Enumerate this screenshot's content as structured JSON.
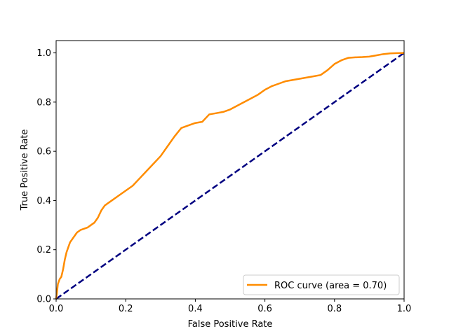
{
  "chart_data": {
    "type": "line",
    "title": "",
    "xlabel": "False Positive Rate",
    "ylabel": "True Positive Rate",
    "xlim": [
      0.0,
      1.0
    ],
    "ylim": [
      0.0,
      1.05
    ],
    "xticks": [
      0.0,
      0.2,
      0.4,
      0.6,
      0.8,
      1.0
    ],
    "yticks": [
      0.0,
      0.2,
      0.4,
      0.6,
      0.8,
      1.0
    ],
    "xtick_labels": [
      "0.0",
      "0.2",
      "0.4",
      "0.6",
      "0.8",
      "1.0"
    ],
    "ytick_labels": [
      "0.0",
      "0.2",
      "0.4",
      "0.6",
      "0.8",
      "1.0"
    ],
    "grid": false,
    "legend": {
      "position": "lower right",
      "entries": [
        "ROC curve (area = 0.70)"
      ]
    },
    "series": [
      {
        "name": "ROC curve (area = 0.70)",
        "color": "#ff8c00",
        "style": "solid",
        "x": [
          0.0,
          0.002,
          0.005,
          0.01,
          0.015,
          0.02,
          0.025,
          0.03,
          0.035,
          0.04,
          0.05,
          0.06,
          0.07,
          0.08,
          0.09,
          0.1,
          0.11,
          0.12,
          0.13,
          0.14,
          0.15,
          0.16,
          0.18,
          0.2,
          0.22,
          0.24,
          0.26,
          0.28,
          0.3,
          0.32,
          0.34,
          0.36,
          0.38,
          0.4,
          0.42,
          0.44,
          0.46,
          0.48,
          0.5,
          0.52,
          0.54,
          0.56,
          0.58,
          0.6,
          0.62,
          0.64,
          0.66,
          0.68,
          0.7,
          0.72,
          0.74,
          0.76,
          0.78,
          0.8,
          0.82,
          0.84,
          0.86,
          0.88,
          0.9,
          0.92,
          0.94,
          0.96,
          0.98,
          1.0
        ],
        "y": [
          0.0,
          0.02,
          0.06,
          0.08,
          0.09,
          0.12,
          0.16,
          0.19,
          0.21,
          0.23,
          0.25,
          0.27,
          0.28,
          0.285,
          0.29,
          0.3,
          0.31,
          0.33,
          0.36,
          0.38,
          0.39,
          0.4,
          0.42,
          0.44,
          0.46,
          0.49,
          0.52,
          0.55,
          0.58,
          0.62,
          0.66,
          0.695,
          0.705,
          0.715,
          0.72,
          0.75,
          0.755,
          0.76,
          0.77,
          0.785,
          0.8,
          0.815,
          0.83,
          0.85,
          0.865,
          0.875,
          0.885,
          0.89,
          0.895,
          0.9,
          0.905,
          0.91,
          0.93,
          0.955,
          0.97,
          0.98,
          0.982,
          0.983,
          0.985,
          0.99,
          0.995,
          0.998,
          0.999,
          1.0
        ]
      },
      {
        "name": "",
        "color": "#000080",
        "style": "dashed",
        "x": [
          0.0,
          1.0
        ],
        "y": [
          0.0,
          1.0
        ]
      }
    ]
  }
}
